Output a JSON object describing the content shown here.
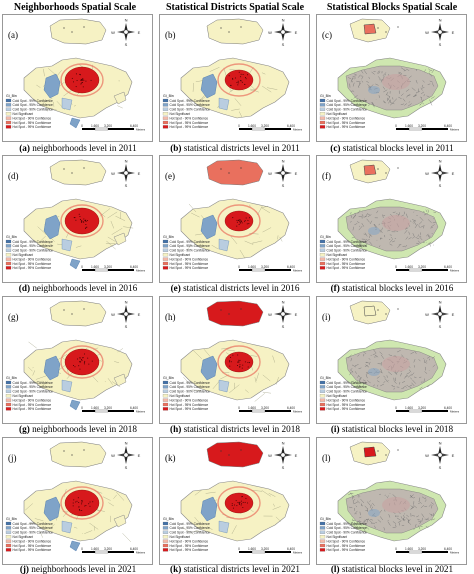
{
  "headers": [
    "Neighborhoods Spatial Scale",
    "Statistical Districts Spatial Scale",
    "Statistical Blocks Spatial Scale"
  ],
  "legend": {
    "title": "Gi_Bin",
    "entries": [
      {
        "label": "Cold Spot - 99% Confidence",
        "color": "#4472a8"
      },
      {
        "label": "Cold Spot - 95% Confidence",
        "color": "#7fa3c8"
      },
      {
        "label": "Cold Spot - 90% Confidence",
        "color": "#b9cde0"
      },
      {
        "label": "Not Significant",
        "color": "#f6f2c4"
      },
      {
        "label": "Hot Spot - 90% Confidence",
        "color": "#f3b9a9"
      },
      {
        "label": "Hot Spot - 95% Confidence",
        "color": "#e9705e"
      },
      {
        "label": "Hot Spot - 99% Confidence",
        "color": "#d7191c"
      }
    ]
  },
  "scalebar": {
    "ticks": [
      "0",
      "1,600",
      "3,200",
      "6,400"
    ],
    "unit": "Meters"
  },
  "compass": {
    "n": "N",
    "s": "S",
    "e": "E",
    "w": "W"
  },
  "panels": [
    {
      "letter": "(a)",
      "caption_bold": "(a)",
      "caption_text": " neighborhoods level in 2011",
      "scale": "neighborhood",
      "inset": "#f6f2c4",
      "blocks": "#d7191c"
    },
    {
      "letter": "(b)",
      "caption_bold": "(b)",
      "caption_text": " statistical districts level in 2011",
      "scale": "district",
      "inset": "#f6f2c4",
      "blocks": "#d7191c"
    },
    {
      "letter": "(c)",
      "caption_bold": "(c)",
      "caption_text": " statistical blocks level in 2011",
      "scale": "block",
      "inset": "#e9705e",
      "blocks": "#c8a0a0"
    },
    {
      "letter": "(d)",
      "caption_bold": "(d)",
      "caption_text": " neighborhoods level in 2016",
      "scale": "neighborhood",
      "inset": "#f6f2c4",
      "blocks": "#d7191c"
    },
    {
      "letter": "(e)",
      "caption_bold": "(e)",
      "caption_text": " statistical districts level in 2016",
      "scale": "district",
      "inset": "#e9705e",
      "blocks": "#d7191c"
    },
    {
      "letter": "(f)",
      "caption_bold": "(f)",
      "caption_text": " statistical blocks level in 2016",
      "scale": "block",
      "inset": "#e9705e",
      "blocks": "#c8a0a0"
    },
    {
      "letter": "(g)",
      "caption_bold": "(g)",
      "caption_text": " neighborhoods level in 2018",
      "scale": "neighborhood",
      "inset": "#f6f2c4",
      "blocks": "#d7191c"
    },
    {
      "letter": "(h)",
      "caption_bold": "(h)",
      "caption_text": " statistical districts level in 2018",
      "scale": "district",
      "inset": "#d7191c",
      "blocks": "#d7191c"
    },
    {
      "letter": "(i)",
      "caption_bold": "(i)",
      "caption_text": " statistical blocks level in 2018",
      "scale": "block",
      "inset": "#f6f2c4",
      "blocks": "#c8a0a0"
    },
    {
      "letter": "(j)",
      "caption_bold": "(j)",
      "caption_text": " neighborhoods level in 2021",
      "scale": "neighborhood",
      "inset": "#f6f2c4",
      "blocks": "#d7191c"
    },
    {
      "letter": "(k)",
      "caption_bold": "(k)",
      "caption_text": " statistical districts level in 2021",
      "scale": "district",
      "inset": "#d7191c",
      "blocks": "#d7191c"
    },
    {
      "letter": "(l)",
      "caption_bold": "(l)",
      "caption_text": " statistical blocks level in 2021",
      "scale": "block",
      "inset": "#d7191c",
      "blocks": "#c8a0a0"
    }
  ]
}
